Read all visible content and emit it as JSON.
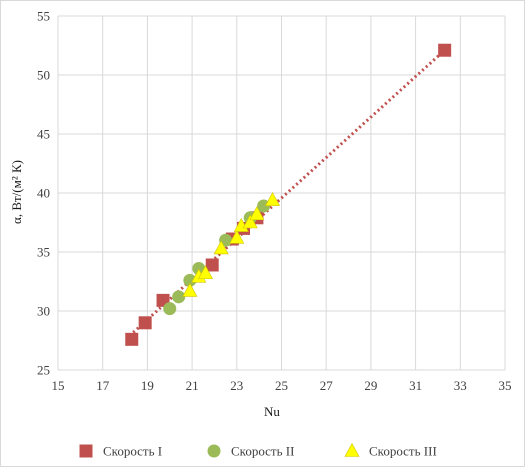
{
  "chart_data": {
    "type": "scatter",
    "xlabel": "Nu",
    "ylabel": "α, Вт/(м² К)",
    "xlim": [
      15,
      35
    ],
    "ylim": [
      25,
      55
    ],
    "x_ticks": [
      15,
      17,
      19,
      21,
      23,
      25,
      27,
      29,
      31,
      33,
      35
    ],
    "y_ticks": [
      25,
      30,
      35,
      40,
      45,
      50,
      55
    ],
    "grid": true,
    "legend_position": "bottom",
    "trendline": {
      "style": "dotted",
      "color": "#C0504D",
      "from": [
        18.2,
        27.9
      ],
      "to": [
        32.3,
        52.1
      ]
    },
    "series": [
      {
        "name": "Скорость I",
        "marker": "square",
        "color": "#C0504D",
        "points": [
          [
            18.3,
            27.6
          ],
          [
            18.9,
            29.0
          ],
          [
            19.7,
            30.9
          ],
          [
            21.9,
            33.9
          ],
          [
            22.8,
            36.1
          ],
          [
            23.3,
            37.0
          ],
          [
            23.9,
            37.9
          ],
          [
            32.3,
            52.1
          ]
        ]
      },
      {
        "name": "Скорость II",
        "marker": "circle",
        "color": "#9BBB59",
        "points": [
          [
            20.0,
            30.2
          ],
          [
            20.4,
            31.2
          ],
          [
            20.9,
            32.6
          ],
          [
            21.3,
            33.6
          ],
          [
            22.5,
            36.0
          ],
          [
            23.6,
            37.9
          ],
          [
            24.2,
            38.9
          ]
        ]
      },
      {
        "name": "Скорость III",
        "marker": "triangle",
        "color": "#FFFF00",
        "points": [
          [
            20.9,
            31.7
          ],
          [
            21.3,
            32.9
          ],
          [
            21.6,
            33.2
          ],
          [
            22.3,
            35.3
          ],
          [
            23.0,
            36.2
          ],
          [
            23.2,
            37.2
          ],
          [
            23.6,
            37.5
          ],
          [
            23.9,
            38.2
          ],
          [
            24.6,
            39.4
          ]
        ]
      }
    ]
  }
}
